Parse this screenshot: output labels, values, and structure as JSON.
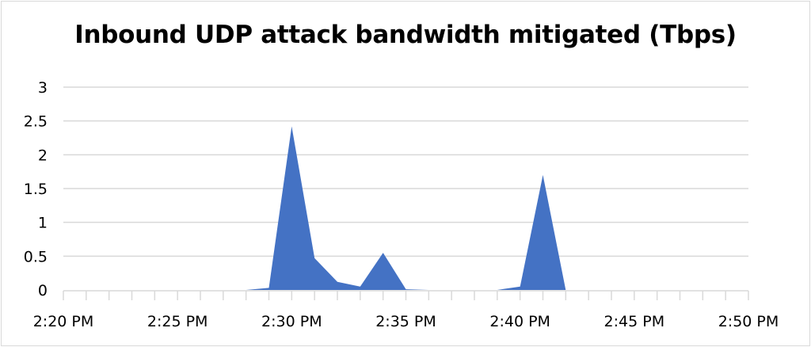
{
  "chart_data": {
    "type": "area",
    "title": "Inbound UDP attack bandwidth mitigated (Tbps)",
    "xlabel": "",
    "ylabel": "",
    "x": [
      "2:20 PM",
      "2:21 PM",
      "2:22 PM",
      "2:23 PM",
      "2:24 PM",
      "2:25 PM",
      "2:26 PM",
      "2:27 PM",
      "2:28 PM",
      "2:29 PM",
      "2:30 PM",
      "2:31 PM",
      "2:32 PM",
      "2:33 PM",
      "2:34 PM",
      "2:35 PM",
      "2:36 PM",
      "2:37 PM",
      "2:38 PM",
      "2:39 PM",
      "2:40 PM",
      "2:41 PM",
      "2:42 PM",
      "2:43 PM",
      "2:44 PM",
      "2:45 PM",
      "2:46 PM",
      "2:47 PM",
      "2:48 PM",
      "2:49 PM",
      "2:50 PM"
    ],
    "series": [
      {
        "values": [
          0,
          0,
          0,
          0,
          0,
          0,
          0,
          0,
          0,
          0.03,
          2.42,
          0.47,
          0.12,
          0.05,
          0.55,
          0.01,
          0,
          0,
          0,
          0,
          0.05,
          1.7,
          0,
          0,
          0,
          0,
          0,
          0,
          0,
          0,
          0
        ]
      }
    ],
    "x_tick_labels": [
      "2:20 PM",
      "2:25 PM",
      "2:30 PM",
      "2:35 PM",
      "2:40 PM",
      "2:45 PM",
      "2:50 PM"
    ],
    "y_tick_labels": [
      "0",
      "0.5",
      "1",
      "1.5",
      "2",
      "2.5",
      "3"
    ],
    "ylim": [
      0,
      3
    ],
    "grid": true,
    "legend": "none",
    "colors": {
      "fill": "#4472c4",
      "grid": "#d9d9d9",
      "axis": "#d9d9d9"
    }
  }
}
